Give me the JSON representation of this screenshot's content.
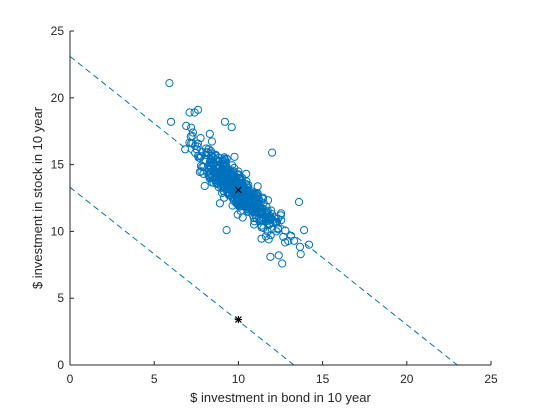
{
  "chart_data": {
    "type": "scatter",
    "xlabel": "$ investment in bond in 10 year",
    "ylabel": "$ investment in stock in 10 year",
    "xlim": [
      0,
      25
    ],
    "ylim": [
      0,
      25
    ],
    "xticks": [
      "0",
      "5",
      "10",
      "15",
      "20",
      "25"
    ],
    "yticks": [
      "0",
      "5",
      "10",
      "15",
      "20",
      "25"
    ],
    "grid": false,
    "legend": "none",
    "colors": {
      "marker": "#0072bd",
      "axis": "#262626",
      "reference": "#000000"
    },
    "scatter_cloud": {
      "marker": "open-circle",
      "count": 500,
      "center": [
        10,
        13.1
      ],
      "spread_along_x": 1.2,
      "spread_along_y": 1.6,
      "correlation": -0.88
    },
    "outlier_points": [
      {
        "x": 5.9,
        "y": 21.1
      },
      {
        "x": 6.0,
        "y": 18.2
      },
      {
        "x": 6.9,
        "y": 17.9
      },
      {
        "x": 7.1,
        "y": 18.9
      },
      {
        "x": 7.4,
        "y": 18.9
      },
      {
        "x": 7.6,
        "y": 19.1
      },
      {
        "x": 7.3,
        "y": 17.4
      },
      {
        "x": 7.2,
        "y": 16.6
      },
      {
        "x": 8.3,
        "y": 17.3
      },
      {
        "x": 9.2,
        "y": 18.2
      },
      {
        "x": 9.6,
        "y": 17.8
      },
      {
        "x": 12.0,
        "y": 15.9
      },
      {
        "x": 13.6,
        "y": 12.2
      },
      {
        "x": 13.9,
        "y": 10.1
      },
      {
        "x": 13.7,
        "y": 8.3
      },
      {
        "x": 12.4,
        "y": 8.2
      },
      {
        "x": 11.9,
        "y": 8.1
      },
      {
        "x": 12.6,
        "y": 7.6
      },
      {
        "x": 13.3,
        "y": 9.3
      },
      {
        "x": 9.3,
        "y": 10.1
      },
      {
        "x": 8.9,
        "y": 12.1
      },
      {
        "x": 8.0,
        "y": 13.4
      },
      {
        "x": 7.8,
        "y": 14.5
      },
      {
        "x": 11.8,
        "y": 9.4
      }
    ],
    "reference_lines": [
      {
        "name": "upper",
        "style": "dashed",
        "x": [
          0,
          23
        ],
        "y": [
          23.1,
          0
        ]
      },
      {
        "name": "lower",
        "style": "dashed",
        "x": [
          0,
          13.3
        ],
        "y": [
          13.3,
          0
        ]
      }
    ],
    "special_markers": [
      {
        "marker": "x",
        "x": 10.0,
        "y": 13.1
      },
      {
        "marker": "asterisk",
        "x": 10.0,
        "y": 3.4
      }
    ]
  }
}
